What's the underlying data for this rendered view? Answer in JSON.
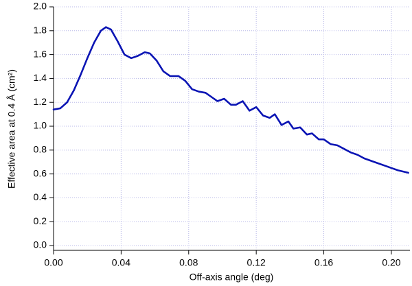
{
  "chart_data": {
    "type": "line",
    "x_label": "Off-axis angle (deg)",
    "y_label": "Effective area at 0.4 Å (cm²)",
    "x": [
      0,
      0.004,
      0.008,
      0.012,
      0.016,
      0.02,
      0.024,
      0.028,
      0.031,
      0.034,
      0.038,
      0.042,
      0.046,
      0.05,
      0.054,
      0.057,
      0.061,
      0.065,
      0.069,
      0.074,
      0.078,
      0.082,
      0.086,
      0.09,
      0.094,
      0.097,
      0.101,
      0.105,
      0.108,
      0.112,
      0.116,
      0.12,
      0.124,
      0.128,
      0.131,
      0.135,
      0.139,
      0.142,
      0.146,
      0.15,
      0.153,
      0.157,
      0.16,
      0.164,
      0.168,
      0.172,
      0.176,
      0.18,
      0.184,
      0.188,
      0.192,
      0.196,
      0.2,
      0.204,
      0.21
    ],
    "values": [
      1.14,
      1.15,
      1.2,
      1.3,
      1.43,
      1.57,
      1.7,
      1.8,
      1.83,
      1.81,
      1.71,
      1.6,
      1.57,
      1.59,
      1.62,
      1.61,
      1.55,
      1.46,
      1.42,
      1.42,
      1.38,
      1.31,
      1.29,
      1.28,
      1.24,
      1.21,
      1.23,
      1.18,
      1.18,
      1.21,
      1.13,
      1.16,
      1.09,
      1.07,
      1.1,
      1.01,
      1.04,
      0.98,
      0.99,
      0.93,
      0.94,
      0.89,
      0.89,
      0.85,
      0.84,
      0.81,
      0.78,
      0.76,
      0.73,
      0.71,
      0.69,
      0.67,
      0.65,
      0.63,
      0.61
    ],
    "color": "#0a14b4",
    "xlim": [
      0,
      0.211
    ],
    "ylim": [
      -0.04,
      2.0
    ],
    "xticks": [
      {
        "value": 0,
        "label": "0.00"
      },
      {
        "value": 0.04,
        "label": "0.04"
      },
      {
        "value": 0.08,
        "label": "0.08"
      },
      {
        "value": 0.12,
        "label": "0.12"
      },
      {
        "value": 0.16,
        "label": "0.16"
      },
      {
        "value": 0.2,
        "label": "0.20"
      }
    ],
    "yticks": [
      {
        "value": 0,
        "label": "0.0"
      },
      {
        "value": 0.2,
        "label": "0.2"
      },
      {
        "value": 0.4,
        "label": "0.4"
      },
      {
        "value": 0.6,
        "label": "0.6"
      },
      {
        "value": 0.8,
        "label": "0.8"
      },
      {
        "value": 1,
        "label": "1.0"
      },
      {
        "value": 1.2,
        "label": "1.2"
      },
      {
        "value": 1.4,
        "label": "1.4"
      },
      {
        "value": 1.6,
        "label": "1.6"
      },
      {
        "value": 1.8,
        "label": "1.8"
      },
      {
        "value": 2,
        "label": "2.0"
      }
    ],
    "grid": true
  }
}
